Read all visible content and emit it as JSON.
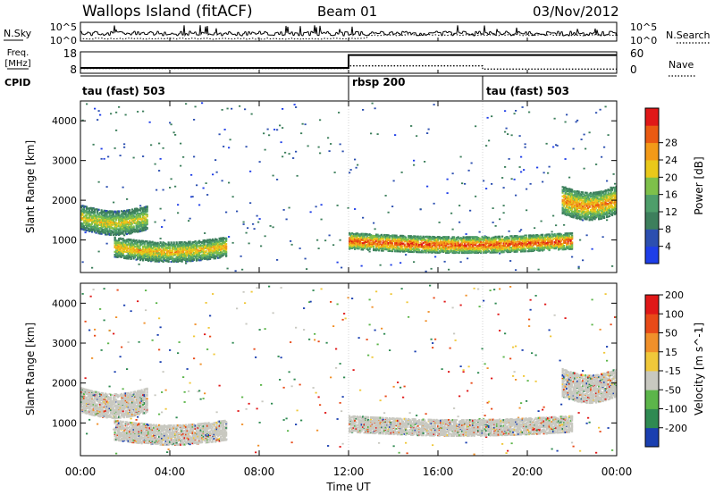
{
  "header": {
    "station": "Wallops Island (fitACF)",
    "beam": "Beam 01",
    "date": "03/Nov/2012"
  },
  "noise_panel": {
    "left_label": "N.Sky",
    "left_ticks": [
      "10^5",
      "10^0"
    ],
    "right_ticks": [
      "10^5",
      "10^0"
    ],
    "right_label": "N.Search"
  },
  "freq_panel": {
    "label_line1": "Freq.",
    "label_line2": "[MHz]",
    "left_ticks": [
      "18",
      "8"
    ],
    "right_ticks": [
      "60",
      "0"
    ],
    "right_label": "Nave",
    "cpid_label": "CPID"
  },
  "cpid_segments": [
    {
      "start_hour": 0,
      "end_hour": 12,
      "label": "tau (fast) 503"
    },
    {
      "start_hour": 12,
      "end_hour": 18,
      "label": "rbsp 200"
    },
    {
      "start_hour": 18,
      "end_hour": 24,
      "label": "tau (fast) 503"
    }
  ],
  "power_colorbar": {
    "label": "Power [dB]",
    "ticks": [
      "4",
      "8",
      "12",
      "16",
      "20",
      "24",
      "28"
    ],
    "colors": [
      "#1e3ee8",
      "#2c4fb0",
      "#3d7f5c",
      "#4e9e6a",
      "#7ec04a",
      "#e9c81a",
      "#f39a18",
      "#ea5a12",
      "#e01818"
    ]
  },
  "velocity_colorbar": {
    "label": "Velocity [m s^-1]",
    "ticks": [
      "200",
      "100",
      "50",
      "15",
      "-15",
      "-50",
      "-100",
      "-200"
    ],
    "colors": [
      "#1a3fb0",
      "#2f8a52",
      "#5cb54a",
      "#c8c8c0",
      "#f0c83a",
      "#f0902a",
      "#e84a18",
      "#e01818"
    ]
  },
  "x_ticks": [
    "00:00",
    "04:00",
    "08:00",
    "12:00",
    "16:00",
    "20:00",
    "00:00"
  ],
  "x_label": "Time UT",
  "y_label": "Slant Range [km]",
  "y_ticks": [
    "1000",
    "2000",
    "3000",
    "4000"
  ],
  "chart_data": {
    "type": "heatmap",
    "x_range_hours": [
      0,
      24
    ],
    "y_range_km": [
      180,
      4500
    ],
    "panels": [
      "power",
      "velocity"
    ],
    "power_scale_db": [
      0,
      30
    ],
    "velocity_scale_ms": [
      -250,
      250
    ],
    "frequency_mhz": [
      {
        "start_hour": 0,
        "end_hour": 12,
        "value": 10.5
      },
      {
        "start_hour": 12,
        "end_hour": 24,
        "value": 16.5
      }
    ],
    "nave": [
      {
        "start_hour": 0,
        "end_hour": 12,
        "value": 12
      },
      {
        "start_hour": 12,
        "end_hour": 18,
        "value": 20
      },
      {
        "start_hour": 18,
        "end_hour": 24,
        "value": 10
      }
    ],
    "echo_bands": [
      {
        "start_hour": 1.5,
        "end_hour": 6.5,
        "range_low_km": 600,
        "range_high_km": 1100,
        "peak_power_db": 22
      },
      {
        "start_hour": 12.0,
        "end_hour": 22.0,
        "range_low_km": 800,
        "range_high_km": 1200,
        "peak_power_db": 28
      },
      {
        "start_hour": 0.0,
        "end_hour": 3.0,
        "range_low_km": 1300,
        "range_high_km": 1900,
        "peak_power_db": 20
      },
      {
        "start_hour": 21.5,
        "end_hour": 24.0,
        "range_low_km": 1700,
        "range_high_km": 2400,
        "peak_power_db": 24
      }
    ]
  }
}
